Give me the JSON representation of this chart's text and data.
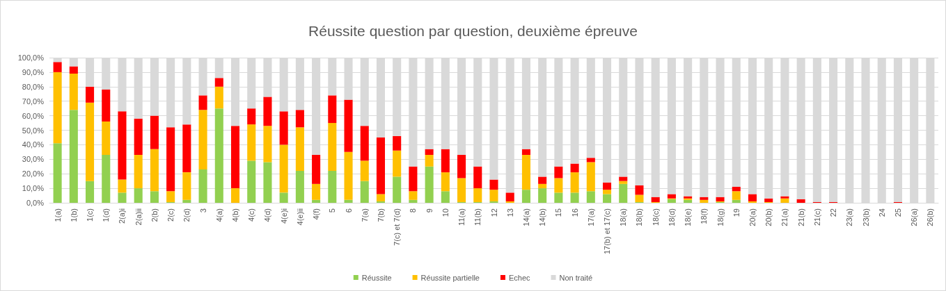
{
  "chart_data": {
    "type": "bar",
    "title": "Réussite question par question, deuxième épreuve",
    "stacked": true,
    "grid": "y",
    "legend": "bottom",
    "categories": [
      "1(a)",
      "1(b)",
      "1(c)",
      "1(d)",
      "2(a)i",
      "2(a)ii",
      "2(b)",
      "2(c)",
      "2(d)",
      "3",
      "4(a)",
      "4(b)",
      "4(c)",
      "4(d)",
      "4(e)i",
      "4(e)ii",
      "4(f)",
      "5",
      "6",
      "7(a)",
      "7(b)",
      "7(c) et 7(d)",
      "8",
      "9",
      "10",
      "11(a)",
      "11(b)",
      "12",
      "13",
      "14(a)",
      "14(b)",
      "15",
      "16",
      "17(a)",
      "17(b) et 17(c)",
      "18(a)",
      "18(b)",
      "18(c)",
      "18(d)",
      "18(e)",
      "18(f)",
      "18(g)",
      "19",
      "20(a)",
      "20(b)",
      "21(a)",
      "21(b)",
      "21(c)",
      "22",
      "23(a)",
      "23(b)",
      "24",
      "25",
      "26(a)",
      "26(b)"
    ],
    "ylim": [
      0,
      100
    ],
    "yticks": [
      {
        "value": 0,
        "label": "0,0%"
      },
      {
        "value": 10,
        "label": "10,0%"
      },
      {
        "value": 20,
        "label": "20,0%"
      },
      {
        "value": 30,
        "label": "30,0%"
      },
      {
        "value": 40,
        "label": "40,0%"
      },
      {
        "value": 50,
        "label": "50,0%"
      },
      {
        "value": 60,
        "label": "60,0%"
      },
      {
        "value": 70,
        "label": "70,0%"
      },
      {
        "value": 80,
        "label": "80,0%"
      },
      {
        "value": 90,
        "label": "90,0%"
      },
      {
        "value": 100,
        "label": "100,0%"
      }
    ],
    "series": [
      {
        "name": "Réussite",
        "color": "#92d050",
        "values": [
          41,
          64,
          15,
          33,
          7,
          10,
          8,
          0.5,
          2,
          23,
          65,
          0,
          29,
          28,
          7,
          22,
          2,
          22,
          2,
          15,
          1,
          18,
          2,
          25,
          8,
          0.5,
          0.5,
          1,
          0,
          9,
          10,
          7,
          7,
          8,
          6,
          13,
          0.5,
          0,
          2.5,
          2,
          0,
          0.5,
          2,
          0,
          0,
          0,
          0,
          0,
          0,
          0,
          0,
          0,
          0,
          0,
          0
        ]
      },
      {
        "name": "Réussite partielle",
        "color": "#ffc000",
        "values": [
          49,
          25,
          54,
          23,
          9,
          23,
          29,
          7.5,
          19,
          41,
          15,
          10,
          25,
          25,
          33,
          30,
          11,
          33,
          33,
          14,
          5,
          18,
          6,
          8,
          13,
          16.5,
          9.5,
          8,
          1,
          24,
          3,
          10,
          14,
          20,
          3,
          2,
          5,
          0.5,
          0.5,
          1,
          2,
          0.5,
          6,
          1,
          0.5,
          3,
          0,
          0,
          0,
          0,
          0,
          0,
          0,
          0,
          0
        ]
      },
      {
        "name": "Echec",
        "color": "#ff0000",
        "values": [
          7,
          5,
          11,
          22,
          47,
          25,
          23,
          44,
          33,
          10,
          6,
          43,
          11,
          20,
          23,
          12,
          20,
          19,
          36,
          24,
          39,
          10,
          17,
          4,
          16,
          16,
          15,
          7,
          6,
          4,
          5,
          8,
          6,
          3,
          5,
          3,
          6.5,
          3.5,
          3,
          1.5,
          2,
          3,
          3,
          5,
          2.5,
          1.5,
          2.5,
          0.5,
          0.5,
          0,
          0,
          0,
          0.5,
          0,
          0
        ]
      },
      {
        "name": "Non traité",
        "color": "#d9d9d9",
        "values": [
          3,
          6,
          20,
          22,
          37,
          42,
          40,
          48,
          46,
          26,
          14,
          47,
          35,
          27,
          37,
          36,
          67,
          26,
          29,
          47,
          55,
          54,
          75,
          63,
          63,
          67,
          75,
          84,
          93,
          63,
          82,
          75,
          73,
          69,
          86,
          82,
          88,
          96,
          94,
          95.5,
          96,
          96,
          89,
          94,
          97,
          95.5,
          97.5,
          99.5,
          99.5,
          100,
          100,
          100,
          99.5,
          100,
          100
        ]
      }
    ]
  }
}
